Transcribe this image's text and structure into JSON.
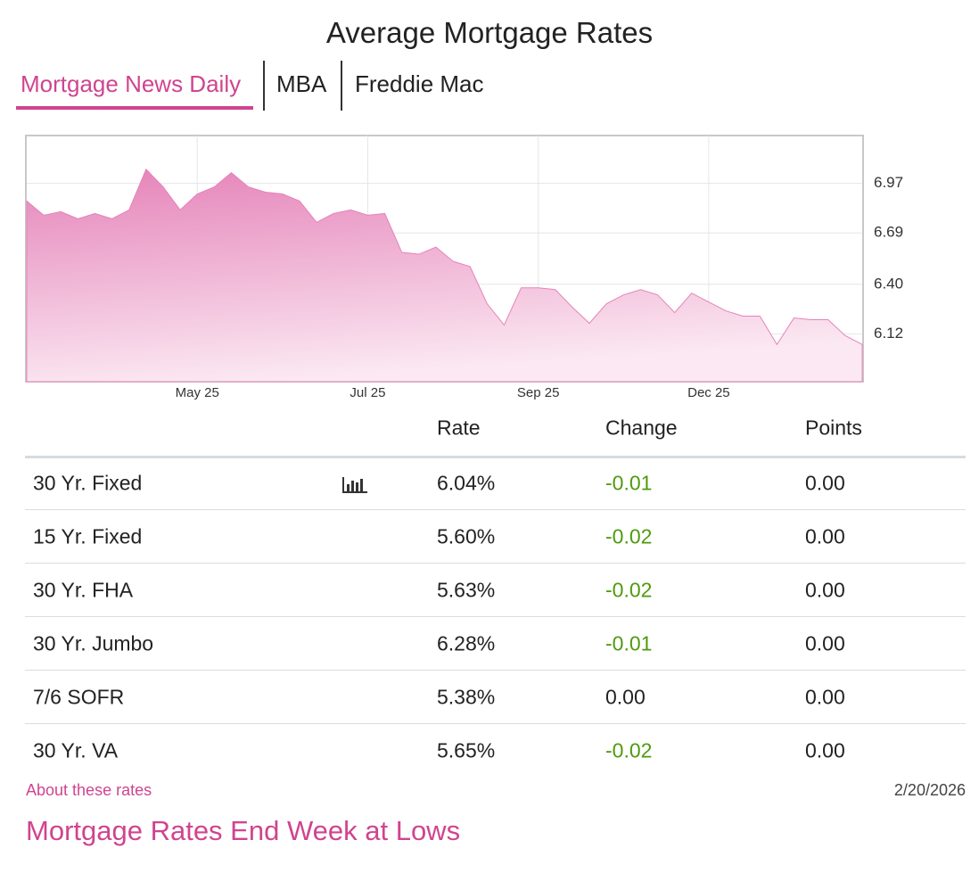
{
  "header": {
    "title": "Average Mortgage Rates"
  },
  "tabs": [
    "Mortgage News Daily",
    "MBA",
    "Freddie Mac"
  ],
  "chart_data": {
    "type": "area",
    "color": "#e583b9",
    "categories": [
      null,
      null,
      null,
      null,
      null,
      null,
      null,
      null,
      null,
      null,
      "May 25",
      null,
      null,
      null,
      null,
      null,
      null,
      null,
      null,
      null,
      "Jul 25",
      null,
      null,
      null,
      null,
      null,
      null,
      null,
      null,
      null,
      "Sep 25",
      null,
      null,
      null,
      null,
      null,
      null,
      null,
      null,
      null,
      "Dec 25",
      null,
      null,
      null,
      null,
      null,
      null,
      null,
      null,
      null
    ],
    "values": [
      6.87,
      6.79,
      6.81,
      6.77,
      6.8,
      6.77,
      6.82,
      7.05,
      6.95,
      6.82,
      6.91,
      6.95,
      7.03,
      6.95,
      6.92,
      6.91,
      6.87,
      6.75,
      6.8,
      6.82,
      6.79,
      6.8,
      6.58,
      6.57,
      6.61,
      6.53,
      6.5,
      6.29,
      6.17,
      6.38,
      6.38,
      6.37,
      6.27,
      6.18,
      6.29,
      6.34,
      6.37,
      6.34,
      6.24,
      6.35,
      6.3,
      6.25,
      6.22,
      6.22,
      6.06,
      6.21,
      6.2,
      6.2,
      6.11,
      6.06
    ],
    "ylim": [
      5.85,
      7.24
    ],
    "yticks": [
      6.12,
      {
        "value": 6.4,
        "label": "6.40"
      },
      6.69,
      6.97
    ],
    "grid": true
  },
  "table": {
    "header": [
      "Rate",
      "Change",
      "Points"
    ],
    "rows": [
      {
        "product": "30 Yr. Fixed",
        "rate": "6.04%",
        "change": "-0.01",
        "points": "0.00",
        "change_color": "#4f9a0e"
      },
      {
        "product": "15 Yr. Fixed",
        "rate": "5.60%",
        "change": "-0.02",
        "points": "0.00",
        "change_color": "#4f9a0e"
      },
      {
        "product": "30 Yr. FHA",
        "rate": "5.63%",
        "change": "-0.02",
        "points": "0.00",
        "change_color": "#4f9a0e"
      },
      {
        "product": "30 Yr. Jumbo",
        "rate": "6.28%",
        "change": "-0.01",
        "points": "0.00",
        "change_color": "#4f9a0e"
      },
      {
        "product": "7/6 SOFR",
        "rate": "5.38%",
        "change": "0.00",
        "points": "0.00",
        "change_color": "#222222"
      },
      {
        "product": "30 Yr. VA",
        "rate": "5.65%",
        "change": "-0.02",
        "points": "0.00",
        "change_color": "#4f9a0e"
      }
    ]
  },
  "footer": {
    "link": "About these rates",
    "date": "2/20/2026",
    "headline": "Mortgage Rates End Week at Lows"
  }
}
